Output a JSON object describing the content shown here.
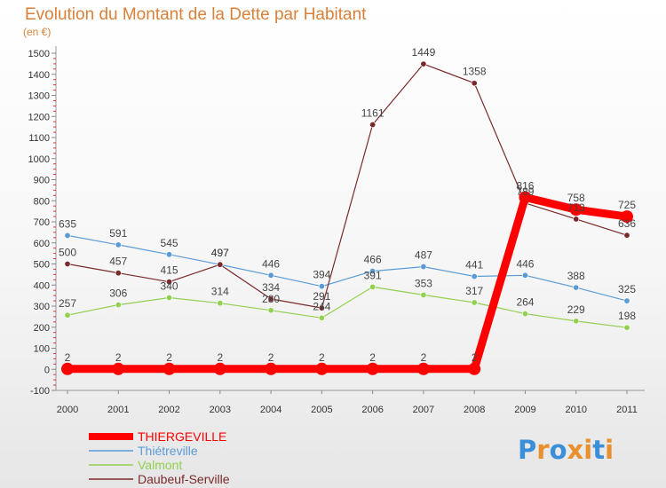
{
  "chart_data": {
    "type": "line",
    "title": "Evolution du Montant de la Dette par Habitant",
    "subtitle": "(en €)",
    "xlabel": "",
    "ylabel": "",
    "ylim": [
      -100,
      1500
    ],
    "ytick_step": 100,
    "grid": false,
    "legend_position": "bottom-left",
    "categories": [
      "2000",
      "2001",
      "2002",
      "2003",
      "2004",
      "2005",
      "2006",
      "2007",
      "2008",
      "2009",
      "2010",
      "2011"
    ],
    "series": [
      {
        "name": "THIERGEVILLE",
        "color": "#ff0000",
        "values": [
          2,
          2,
          2,
          2,
          2,
          2,
          2,
          2,
          2,
          816,
          758,
          725
        ],
        "labels": [
          "2",
          "2",
          "2",
          "2",
          "2",
          "2",
          "2",
          "2",
          "2",
          "816",
          "758",
          "725"
        ]
      },
      {
        "name": "Thiétreville",
        "color": "#5b9bd5",
        "values": [
          635,
          591,
          545,
          497,
          446,
          394,
          466,
          487,
          441,
          446,
          388,
          325
        ],
        "labels": [
          "635",
          "591",
          "545",
          "497",
          "446",
          "394",
          "466",
          "487",
          "441",
          "446",
          "388",
          "325"
        ]
      },
      {
        "name": "Valmont",
        "color": "#92d050",
        "values": [
          257,
          306,
          340,
          314,
          280,
          244,
          391,
          353,
          317,
          264,
          229,
          198
        ],
        "labels": [
          "257",
          "306",
          "340",
          "314",
          "280",
          "244",
          "391",
          "353",
          "317",
          "264",
          "229",
          "198"
        ]
      },
      {
        "name": "Daubeuf-Serville",
        "color": "#7a2a2a",
        "values": [
          500,
          457,
          415,
          497,
          334,
          291,
          1161,
          1449,
          1358,
          789,
          713,
          636
        ],
        "labels": [
          "500",
          "457",
          "415",
          "497",
          "334",
          "291",
          "1161",
          "1449",
          "1358",
          "789",
          "713",
          "636"
        ]
      }
    ]
  },
  "logo": {
    "text": "Proxiti",
    "letters": [
      "P",
      "r",
      "o",
      "x",
      "i",
      "t",
      "i"
    ],
    "colors": [
      "#3b8fd9",
      "#e8902e",
      "#3b8fd9",
      "#e8902e",
      "#e8902e",
      "#3b8fd9",
      "#e8902e"
    ]
  }
}
